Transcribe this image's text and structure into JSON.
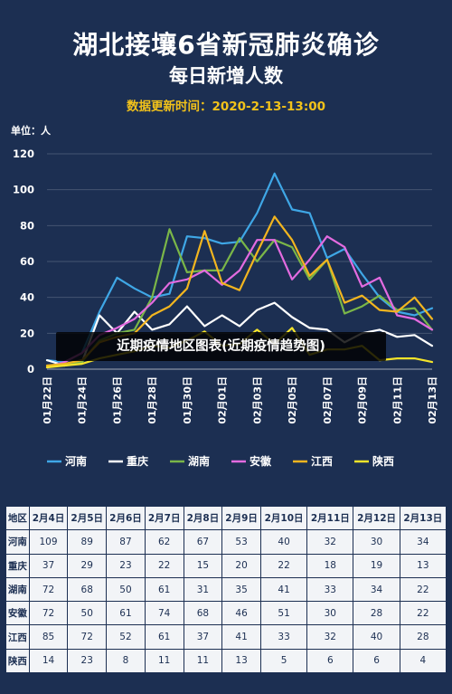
{
  "header": {
    "title": "湖北接壤6省新冠肺炎确诊",
    "subtitle": "每日新增人数",
    "update_time": "数据更新时间：2020-2-13-13:00",
    "unit": "单位：人"
  },
  "overlay_caption": "近期疫情地区图表(近期疫情趋势图)",
  "chart_data": {
    "type": "line",
    "x": [
      "01月22日",
      "01月23日",
      "01月24日",
      "01月25日",
      "01月26日",
      "01月27日",
      "01月28日",
      "01月29日",
      "01月30日",
      "01月31日",
      "02月01日",
      "02月02日",
      "02月03日",
      "02月04日",
      "02月05日",
      "02月06日",
      "02月07日",
      "02月08日",
      "02月09日",
      "02月10日",
      "02月11日",
      "02月12日",
      "02月13日"
    ],
    "x_tick_labels": [
      "01月22日",
      "01月24日",
      "01月26日",
      "01月28日",
      "01月30日",
      "02月01日",
      "02月03日",
      "02月05日",
      "02月07日",
      "02月09日",
      "02月11日",
      "02月13日"
    ],
    "ylim": [
      0,
      120
    ],
    "y_ticks": [
      0,
      20,
      40,
      60,
      80,
      100,
      120
    ],
    "grid": true,
    "legend_position": "bottom",
    "series": [
      {
        "name": "河南",
        "color": "#3fa7e6",
        "values": [
          5,
          4,
          9,
          32,
          51,
          45,
          40,
          42,
          74,
          73,
          70,
          71,
          87,
          109,
          89,
          87,
          62,
          67,
          53,
          40,
          32,
          30,
          34
        ]
      },
      {
        "name": "重庆",
        "color": "#ffffff",
        "values": [
          5,
          2,
          4,
          30,
          20,
          32,
          22,
          25,
          35,
          24,
          30,
          24,
          33,
          37,
          29,
          23,
          22,
          15,
          20,
          22,
          18,
          19,
          13
        ]
      },
      {
        "name": "湖南",
        "color": "#7ab648",
        "values": [
          2,
          2,
          4,
          16,
          20,
          22,
          40,
          78,
          54,
          55,
          55,
          73,
          60,
          72,
          68,
          50,
          61,
          31,
          35,
          41,
          33,
          34,
          22
        ]
      },
      {
        "name": "安徽",
        "color": "#e36be0",
        "values": [
          1,
          4,
          9,
          19,
          23,
          28,
          37,
          48,
          50,
          55,
          47,
          55,
          72,
          72,
          50,
          61,
          74,
          68,
          46,
          51,
          30,
          28,
          22
        ]
      },
      {
        "name": "江西",
        "color": "#f2b51f",
        "values": [
          2,
          3,
          5,
          15,
          18,
          20,
          30,
          35,
          45,
          77,
          48,
          44,
          65,
          85,
          72,
          52,
          61,
          37,
          41,
          33,
          32,
          40,
          28
        ]
      },
      {
        "name": "陕西",
        "color": "#f5e42a",
        "values": [
          1,
          2,
          3,
          6,
          8,
          10,
          13,
          12,
          16,
          21,
          13,
          14,
          22,
          14,
          23,
          8,
          11,
          11,
          13,
          5,
          6,
          6,
          4
        ]
      }
    ]
  },
  "table": {
    "headers": [
      "地区",
      "2月4日",
      "2月5日",
      "2月6日",
      "2月7日",
      "2月8日",
      "2月9日",
      "2月10日",
      "2月11日",
      "2月12日",
      "2月13日"
    ],
    "rows": [
      [
        "河南",
        "109",
        "89",
        "87",
        "62",
        "67",
        "53",
        "40",
        "32",
        "30",
        "34"
      ],
      [
        "重庆",
        "37",
        "29",
        "23",
        "22",
        "15",
        "20",
        "22",
        "18",
        "19",
        "13"
      ],
      [
        "湖南",
        "72",
        "68",
        "50",
        "61",
        "31",
        "35",
        "41",
        "33",
        "34",
        "22"
      ],
      [
        "安徽",
        "72",
        "50",
        "61",
        "74",
        "68",
        "46",
        "51",
        "30",
        "28",
        "22"
      ],
      [
        "江西",
        "85",
        "72",
        "52",
        "61",
        "37",
        "41",
        "33",
        "32",
        "40",
        "28"
      ],
      [
        "陕西",
        "14",
        "23",
        "8",
        "11",
        "11",
        "13",
        "5",
        "6",
        "6",
        "4"
      ]
    ]
  }
}
